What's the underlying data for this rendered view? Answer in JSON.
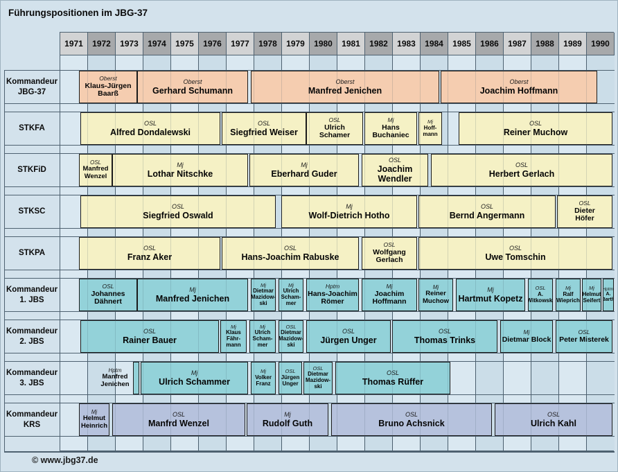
{
  "title": "Führungspositionen im JBG-37",
  "footer": "© www.jbg37.de",
  "colors": {
    "background": "#d3e2ec",
    "stripe_light": "#dae8f1",
    "stripe_dark": "#cbdde8",
    "grid_line": "#4e6170",
    "header_light": "#d2d3d4",
    "header_dark": "#a7a9ab",
    "bar_border": "#1a1a1a",
    "kommandeur": "#f5cdb0",
    "stab": "#f5f1c5",
    "jbs": "#93d2d9",
    "krs": "#b6c2dd"
  },
  "chart_data": {
    "type": "timeline-gantt",
    "title": "Führungspositionen im JBG-37",
    "x_axis": {
      "ticks": [
        "1971",
        "1972",
        "1973",
        "1974",
        "1975",
        "1976",
        "1977",
        "1978",
        "1979",
        "1980",
        "1981",
        "1982",
        "1983",
        "1984",
        "1985",
        "1986",
        "1987",
        "1988",
        "1989",
        "1990"
      ],
      "range": [
        1971,
        1991
      ]
    },
    "legend": "none",
    "rows": [
      {
        "label": "Kommandeur JBG-37",
        "label_lines": [
          "Kommandeur",
          "JBG-37"
        ],
        "color_key": "kommandeur",
        "bars": [
          {
            "rank": "Oberst",
            "name": "Klaus-Jürgen Baarß",
            "name_lines": [
              "Klaus-Jürgen",
              "Baarß"
            ],
            "from": 1971.7,
            "to": 1973.8
          },
          {
            "rank": "Oberst",
            "name": "Gerhard Schumann",
            "name_lines": [
              "Gerhard Schumann"
            ],
            "from": 1973.8,
            "to": 1977.8
          },
          {
            "rank": "Oberst",
            "name": "Manfred Jenichen",
            "name_lines": [
              "Manfred Jenichen"
            ],
            "from": 1977.9,
            "to": 1984.7
          },
          {
            "rank": "Oberst",
            "name": "Joachim Hoffmann",
            "name_lines": [
              "Joachim Hoffmann"
            ],
            "from": 1984.75,
            "to": 1990.4
          }
        ]
      },
      {
        "label": "STKFA",
        "label_lines": [
          "STKFA"
        ],
        "color_key": "stab",
        "bars": [
          {
            "rank": "OSL",
            "name": "Alfred Dondalewski",
            "name_lines": [
              "Alfred Dondalewski"
            ],
            "from": 1971.75,
            "to": 1976.8
          },
          {
            "rank": "OSL",
            "name": "Siegfried Weiser",
            "name_lines": [
              "Siegfried Weiser"
            ],
            "from": 1976.85,
            "to": 1979.9
          },
          {
            "rank": "OSL",
            "name": "Ulrich Schamer",
            "name_lines": [
              "Ulrich",
              "Schamer"
            ],
            "from": 1979.9,
            "to": 1981.95
          },
          {
            "rank": "Mj",
            "name": "Hans Buchaniec",
            "name_lines": [
              "Hans",
              "Buchaniec"
            ],
            "from": 1982.0,
            "to": 1983.9
          },
          {
            "rank": "Mj",
            "name": "Hoffmann",
            "name_lines": [
              "Hoff-",
              "mann"
            ],
            "from": 1983.95,
            "to": 1984.8
          },
          {
            "rank": "OSL",
            "name": "Reiner Muchow",
            "name_lines": [
              "Reiner Muchow"
            ],
            "from": 1985.4,
            "to": 1990.95
          }
        ]
      },
      {
        "label": "STKFiD",
        "label_lines": [
          "STKFiD"
        ],
        "color_key": "stab",
        "bars": [
          {
            "rank": "OSL",
            "name": "Manfred Wenzel",
            "name_lines": [
              "Manfred",
              "Wenzel"
            ],
            "from": 1971.7,
            "to": 1972.9
          },
          {
            "rank": "Mj",
            "name": "Lothar Nitschke",
            "name_lines": [
              "Lothar Nitschke"
            ],
            "from": 1972.9,
            "to": 1977.8
          },
          {
            "rank": "Mj",
            "name": "Eberhard Guder",
            "name_lines": [
              "Eberhard Guder"
            ],
            "from": 1977.85,
            "to": 1981.8
          },
          {
            "rank": "OSL",
            "name": "Joachim Wendler",
            "name_lines": [
              "Joachim",
              "Wendler"
            ],
            "from": 1981.9,
            "to": 1984.3
          },
          {
            "rank": "OSL",
            "name": "Herbert Gerlach",
            "name_lines": [
              "Herbert Gerlach"
            ],
            "from": 1984.4,
            "to": 1990.95
          }
        ]
      },
      {
        "label": "STKSC",
        "label_lines": [
          "STKSC"
        ],
        "color_key": "stab",
        "bars": [
          {
            "rank": "OSL",
            "name": "Siegfried Oswald",
            "name_lines": [
              "Siegfried Oswald"
            ],
            "from": 1971.75,
            "to": 1978.8
          },
          {
            "rank": "Mj",
            "name": "Wolf-Dietrich Hotho",
            "name_lines": [
              "Wolf-Dietrich Hotho"
            ],
            "from": 1979.0,
            "to": 1983.9
          },
          {
            "rank": "OSL",
            "name": "Bernd Angermann",
            "name_lines": [
              "Bernd Angermann"
            ],
            "from": 1983.95,
            "to": 1988.9
          },
          {
            "rank": "OSL",
            "name": "Dieter Höfer",
            "name_lines": [
              "Dieter",
              "Höfer"
            ],
            "from": 1988.95,
            "to": 1990.95
          }
        ]
      },
      {
        "label": "STKPA",
        "label_lines": [
          "STKPA"
        ],
        "color_key": "stab",
        "bars": [
          {
            "rank": "OSL",
            "name": "Franz Aker",
            "name_lines": [
              "Franz Aker"
            ],
            "from": 1971.7,
            "to": 1976.8
          },
          {
            "rank": "OSL",
            "name": "Hans-Joachim Rabuske",
            "name_lines": [
              "Hans-Joachim Rabuske"
            ],
            "from": 1976.85,
            "to": 1981.8
          },
          {
            "rank": "OSL",
            "name": "Wolfgang Gerlach",
            "name_lines": [
              "Wolfgang",
              "Gerlach"
            ],
            "from": 1981.9,
            "to": 1983.9
          },
          {
            "rank": "OSL",
            "name": "Uwe Tomschin",
            "name_lines": [
              "Uwe Tomschin"
            ],
            "from": 1983.95,
            "to": 1990.95
          }
        ]
      },
      {
        "label": "Kommandeur 1. JBS",
        "label_lines": [
          "Kommandeur",
          "1. JBS"
        ],
        "color_key": "jbs",
        "bars": [
          {
            "rank": "OSL",
            "name": "Johannes Dähnert",
            "name_lines": [
              "Johannes",
              "Dähnert"
            ],
            "from": 1971.7,
            "to": 1973.8
          },
          {
            "rank": "Mj",
            "name": "Manfred Jenichen",
            "name_lines": [
              "Manfred Jenichen"
            ],
            "from": 1973.8,
            "to": 1977.8
          },
          {
            "rank": "Mj",
            "name": "Dietmar Mazidowski",
            "name_lines": [
              "Dietmar",
              "Mazidow-",
              "ski"
            ],
            "from": 1977.9,
            "to": 1978.8
          },
          {
            "rank": "Mj",
            "name": "Ulrich Schammer",
            "name_lines": [
              "Ulrich",
              "Scham-",
              "mer"
            ],
            "from": 1978.9,
            "to": 1979.8
          },
          {
            "rank": "Hptm",
            "name": "Hans-Joachim Römer",
            "name_lines": [
              "Hans-Joachim",
              "Römer"
            ],
            "from": 1979.9,
            "to": 1981.8
          },
          {
            "rank": "Mj",
            "name": "Joachim Hoffmann",
            "name_lines": [
              "Joachim",
              "Hoffmann"
            ],
            "from": 1981.9,
            "to": 1983.9
          },
          {
            "rank": "Mj",
            "name": "Reiner Muchow",
            "name_lines": [
              "Reiner",
              "Muchow"
            ],
            "from": 1983.95,
            "to": 1985.2
          },
          {
            "rank": "Mj",
            "name": "Hartmut Kopetz",
            "name_lines": [
              "Hartmut Kopetz"
            ],
            "from": 1985.3,
            "to": 1987.8
          },
          {
            "rank": "OSL",
            "name": "A. Witkowski",
            "name_lines": [
              "A.",
              "Witkowski"
            ],
            "from": 1987.9,
            "to": 1988.8
          },
          {
            "rank": "Mj",
            "name": "Ralf Wieprich",
            "name_lines": [
              "Ralf",
              "Wieprich"
            ],
            "from": 1988.9,
            "to": 1989.8
          },
          {
            "rank": "Mj",
            "name": "Helmut Seifert",
            "name_lines": [
              "Helmut",
              "Seifert"
            ],
            "from": 1989.85,
            "to": 1990.55
          },
          {
            "rank": "Hptm.",
            "name": "A. Barth",
            "name_lines": [
              "A.",
              "Barth"
            ],
            "from": 1990.6,
            "to": 1991.0
          }
        ]
      },
      {
        "label": "Kommandeur 2. JBS",
        "label_lines": [
          "Kommandeur",
          "2. JBS"
        ],
        "color_key": "jbs",
        "bars": [
          {
            "rank": "OSL",
            "name": "Rainer Bauer",
            "name_lines": [
              "Rainer Bauer"
            ],
            "from": 1971.75,
            "to": 1976.75
          },
          {
            "rank": "Mj",
            "name": "Klaus Fährmann",
            "name_lines": [
              "Klaus",
              "Fähr-",
              "mann"
            ],
            "from": 1976.8,
            "to": 1977.75
          },
          {
            "rank": "Mj",
            "name": "Ulrich Schammer",
            "name_lines": [
              "Ulrich",
              "Scham-",
              "mer"
            ],
            "from": 1977.85,
            "to": 1978.8
          },
          {
            "rank": "OSL",
            "name": "Dietmar Mazidowski",
            "name_lines": [
              "Dietmar",
              "Mazidow-",
              "ski"
            ],
            "from": 1978.9,
            "to": 1979.8
          },
          {
            "rank": "OSL",
            "name": "Jürgen Unger",
            "name_lines": [
              "Jürgen Unger"
            ],
            "from": 1979.9,
            "to": 1982.95
          },
          {
            "rank": "OSL",
            "name": "Thomas Trinks",
            "name_lines": [
              "Thomas Trinks"
            ],
            "from": 1983.0,
            "to": 1986.8
          },
          {
            "rank": "Mj",
            "name": "Dietmar Block",
            "name_lines": [
              "Dietmar Block"
            ],
            "from": 1986.9,
            "to": 1988.8
          },
          {
            "rank": "OSL",
            "name": "Peter Misterek",
            "name_lines": [
              "Peter Misterek"
            ],
            "from": 1988.9,
            "to": 1990.95
          }
        ]
      },
      {
        "label": "Kommandeur 3. JBS",
        "label_lines": [
          "Kommandeur",
          "3. JBS"
        ],
        "color_key": "jbs",
        "bars": [
          {
            "rank": "Hptm",
            "name": "Manfred Jenichen",
            "name_lines": [
              "Manfred",
              "Jenichen"
            ],
            "from": 1972.4,
            "to": 1973.6,
            "no_box": true
          },
          {
            "from": 1973.65,
            "to": 1973.88,
            "no_text": true
          },
          {
            "rank": "Mj",
            "name": "Ulrich Schammer",
            "name_lines": [
              "Ulrich Schammer"
            ],
            "from": 1973.93,
            "to": 1977.8
          },
          {
            "rank": "Mj",
            "name": "Volker Franz",
            "name_lines": [
              "Volker",
              "Franz"
            ],
            "from": 1977.9,
            "to": 1978.8
          },
          {
            "rank": "OSL",
            "name": "Jürgen Unger",
            "name_lines": [
              "Jürgen",
              "Unger"
            ],
            "from": 1978.9,
            "to": 1979.75
          },
          {
            "rank": "OSL",
            "name": "Dietmar Mazidowski",
            "name_lines": [
              "Dietmar",
              "Mazidow-",
              "ski"
            ],
            "from": 1979.8,
            "to": 1980.85
          },
          {
            "rank": "OSL",
            "name": "Thomas Rüffer",
            "name_lines": [
              "Thomas Rüffer"
            ],
            "from": 1980.95,
            "to": 1985.1
          }
        ]
      },
      {
        "label": "Kommandeur KRS",
        "label_lines": [
          "Kommandeur",
          "KRS"
        ],
        "color_key": "krs",
        "bars": [
          {
            "rank": "Mj",
            "name": "Helmut Heinrich",
            "name_lines": [
              "Helmut",
              "Heinrich"
            ],
            "from": 1971.7,
            "to": 1972.8
          },
          {
            "rank": "OSL",
            "name": "Manfrd Wenzel",
            "name_lines": [
              "Manfrd Wenzel"
            ],
            "from": 1972.9,
            "to": 1977.7
          },
          {
            "rank": "Mj",
            "name": "Rudolf Guth",
            "name_lines": [
              "Rudolf Guth"
            ],
            "from": 1977.75,
            "to": 1980.7
          },
          {
            "rank": "OSL",
            "name": "Bruno Achsnick",
            "name_lines": [
              "Bruno Achsnick"
            ],
            "from": 1980.8,
            "to": 1986.6
          },
          {
            "rank": "OSL",
            "name": "Ulrich Kahl",
            "name_lines": [
              "Ulrich Kahl"
            ],
            "from": 1986.7,
            "to": 1990.95
          }
        ]
      }
    ]
  }
}
